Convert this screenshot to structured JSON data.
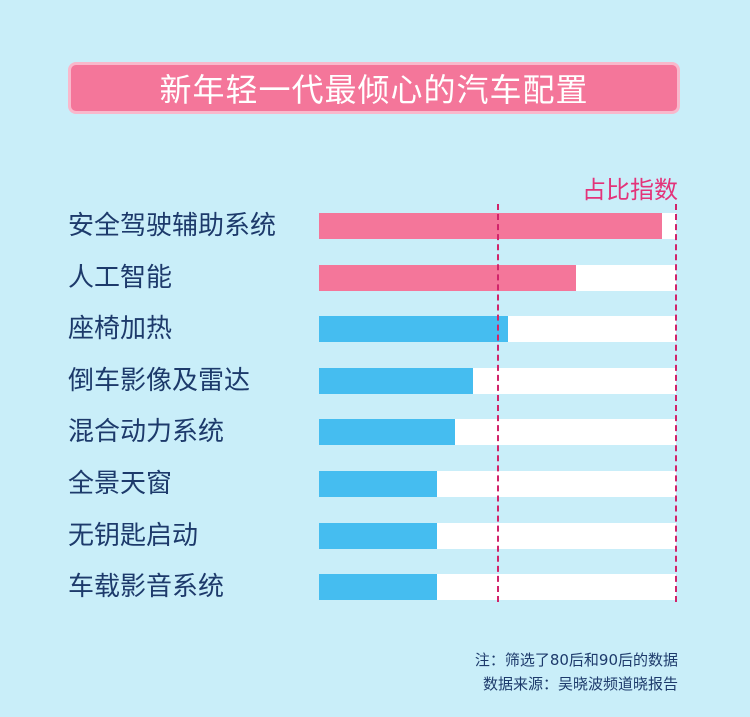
{
  "title": "新年轻一代最倾心的汽车配置",
  "chart_data": {
    "type": "bar",
    "orientation": "horizontal",
    "value_label": "占比指数",
    "categories": [
      "安全驾驶辅助系统",
      "人工智能",
      "座椅加热",
      "倒车影像及雷达",
      "混合动力系统",
      "全景天窗",
      "无钥匙启动",
      "车载影音系统"
    ],
    "values": [
      96,
      72,
      53,
      43,
      38,
      33,
      33,
      33
    ],
    "xlim": [
      0,
      100
    ],
    "reference_lines": [
      50,
      100
    ],
    "highlight_count": 2,
    "colors": {
      "highlight": "#f4769a",
      "normal": "#45bdf0",
      "track": "#ffffff",
      "reference": "#d1236a"
    }
  },
  "notes": {
    "line1": "注：筛选了80后和90后的数据",
    "line2": "数据来源：吴晓波频道晓报告"
  }
}
